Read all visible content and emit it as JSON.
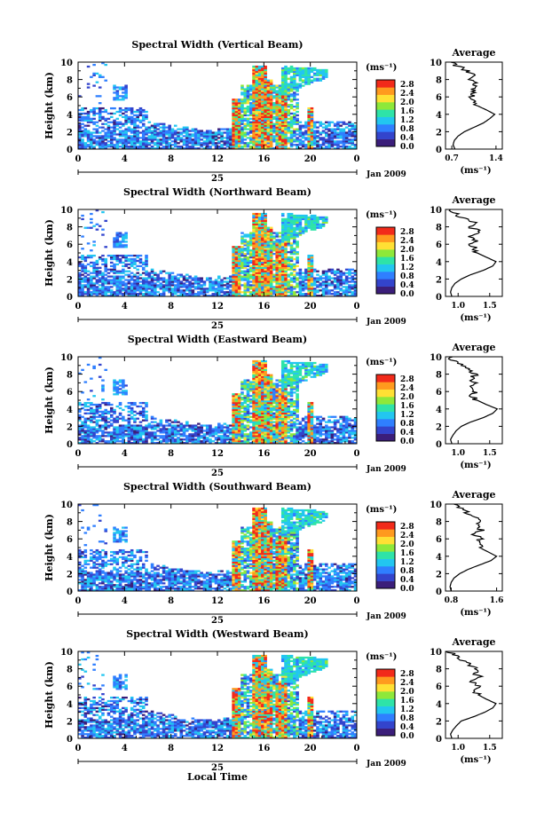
{
  "chart_data": {
    "type": "heatmap",
    "figure_xlabel": "Local Time",
    "x_ticks": [
      "0",
      "4",
      "8",
      "12",
      "16",
      "20",
      "0"
    ],
    "date_mark": "25",
    "date_label": "Jan 2009",
    "ylabel": "Height (km)",
    "y_ticks": [
      "0",
      "2",
      "4",
      "6",
      "8",
      "10"
    ],
    "xlim": [
      0,
      24
    ],
    "ylim": [
      0,
      10
    ],
    "colorbar": {
      "unit": "(ms⁻¹)",
      "ticks": [
        "0.0",
        "0.4",
        "0.8",
        "1.2",
        "1.6",
        "2.0",
        "2.4",
        "2.8"
      ],
      "range": [
        0,
        3.0
      ],
      "colors": [
        "#3b1e7a",
        "#3344cc",
        "#2f7fff",
        "#22c6f0",
        "#2ee3a8",
        "#8ee83a",
        "#ffe034",
        "#ff9a1e",
        "#f22a1a"
      ]
    },
    "panels": [
      {
        "title": "Spectral Width (Vertical Beam)",
        "colorbar_ticks": [
          "0.0",
          "0.4",
          "0.8",
          "1.2",
          "1.6",
          "2.0",
          "2.4",
          "2.8"
        ],
        "profile": {
          "title": "Average",
          "xlabel": "(ms⁻¹)",
          "x_ticks": [
            "0.7",
            "1.4"
          ],
          "xlim": [
            0.6,
            1.5
          ],
          "heights": [
            0,
            0.5,
            1,
            1.5,
            2,
            2.5,
            3,
            3.5,
            4,
            4.5,
            5,
            5.5,
            6,
            6.5,
            7,
            7.5,
            8,
            8.5,
            9,
            9.5,
            10
          ],
          "values": [
            0.75,
            0.72,
            0.74,
            0.8,
            0.9,
            1.05,
            1.2,
            1.3,
            1.38,
            1.25,
            1.1,
            1.05,
            1.0,
            1.08,
            1.02,
            1.1,
            1.0,
            1.05,
            0.95,
            0.8,
            0.7
          ]
        }
      },
      {
        "title": "Spectral Width (Northward Beam)",
        "colorbar_ticks": [
          "0.0",
          "0.4",
          "0.8",
          "1.2",
          "1.6",
          "2.0",
          "2.4",
          "2.8"
        ],
        "profile": {
          "title": "Average",
          "xlabel": "(ms⁻¹)",
          "x_ticks": [
            "1.0",
            "1.5"
          ],
          "xlim": [
            0.8,
            1.7
          ],
          "heights": [
            0,
            0.5,
            1,
            1.5,
            2,
            2.5,
            3,
            3.5,
            4,
            4.5,
            5,
            5.5,
            6,
            6.5,
            7,
            7.5,
            8,
            8.5,
            9,
            9.5,
            10
          ],
          "values": [
            0.9,
            0.88,
            0.9,
            0.95,
            1.05,
            1.2,
            1.4,
            1.55,
            1.6,
            1.45,
            1.3,
            1.25,
            1.2,
            1.28,
            1.2,
            1.32,
            1.2,
            1.25,
            1.1,
            0.95,
            0.85
          ]
        }
      },
      {
        "title": "Spectral Width (Eastward Beam)",
        "colorbar_ticks": [
          "0.0",
          "0.4",
          "0.8",
          "1.2",
          "1.6",
          "2.0",
          "2.4",
          "2.8"
        ],
        "profile": {
          "title": "Average",
          "xlabel": "(ms⁻¹)",
          "x_ticks": [
            "1.0",
            "1.5"
          ],
          "xlim": [
            0.8,
            1.7
          ],
          "heights": [
            0,
            0.5,
            1,
            1.5,
            2,
            2.5,
            3,
            3.5,
            4,
            4.5,
            5,
            5.5,
            6,
            6.5,
            7,
            7.5,
            8,
            8.5,
            9,
            9.5,
            10
          ],
          "values": [
            0.9,
            0.88,
            0.92,
            0.97,
            1.05,
            1.2,
            1.4,
            1.55,
            1.62,
            1.45,
            1.3,
            1.22,
            1.25,
            1.18,
            1.28,
            1.2,
            1.3,
            1.15,
            1.05,
            0.95,
            0.85
          ]
        }
      },
      {
        "title": "Spectral Width (Southward Beam)",
        "colorbar_ticks": [
          "0.0",
          "0.4",
          "0.8",
          "1.2",
          "1.6",
          "2.0",
          "2.4",
          "2.8"
        ],
        "profile": {
          "title": "Average",
          "xlabel": "(ms⁻¹)",
          "x_ticks": [
            "0.8",
            "1.6"
          ],
          "xlim": [
            0.7,
            1.7
          ],
          "heights": [
            0,
            0.5,
            1,
            1.5,
            2,
            2.5,
            3,
            3.5,
            4,
            4.5,
            5,
            5.5,
            6,
            6.5,
            7,
            7.5,
            8,
            8.5,
            9,
            9.5,
            10
          ],
          "values": [
            0.8,
            0.78,
            0.8,
            0.85,
            0.95,
            1.1,
            1.3,
            1.5,
            1.6,
            1.45,
            1.3,
            1.25,
            1.3,
            1.22,
            1.32,
            1.25,
            1.35,
            1.2,
            1.1,
            0.95,
            0.85
          ]
        }
      },
      {
        "title": "Spectral Width (Westward Beam)",
        "colorbar_ticks": [
          "0.0",
          "0.4",
          "0.8",
          "1.2",
          "1.6",
          "2.0",
          "2.4",
          "2.8"
        ],
        "profile": {
          "title": "Average",
          "xlabel": "(ms⁻¹)",
          "x_ticks": [
            "1.0",
            "1.5"
          ],
          "xlim": [
            0.8,
            1.7
          ],
          "heights": [
            0,
            0.5,
            1,
            1.5,
            2,
            2.5,
            3,
            3.5,
            4,
            4.5,
            5,
            5.5,
            6,
            6.5,
            7,
            7.5,
            8,
            8.5,
            9,
            9.5,
            10
          ],
          "values": [
            0.9,
            0.88,
            0.92,
            0.98,
            1.05,
            1.25,
            1.42,
            1.55,
            1.6,
            1.45,
            1.32,
            1.25,
            1.3,
            1.22,
            1.35,
            1.25,
            1.3,
            1.18,
            1.05,
            0.95,
            0.85
          ]
        }
      }
    ]
  }
}
